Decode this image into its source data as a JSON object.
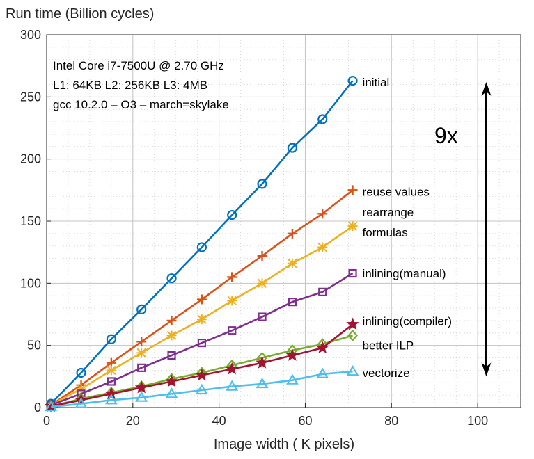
{
  "chart_data": {
    "type": "line",
    "title": "",
    "ylabel": "Run time (Billion cycles)",
    "xlabel": "Image width ( K pixels)",
    "xlim": [
      0,
      110
    ],
    "ylim": [
      0,
      300
    ],
    "xticks": [
      0,
      20,
      40,
      60,
      80,
      100
    ],
    "yticks": [
      0,
      50,
      100,
      150,
      200,
      250,
      300
    ],
    "grid": true,
    "x": [
      1,
      8,
      15,
      22,
      29,
      36,
      43,
      50,
      57,
      64,
      71
    ],
    "series": [
      {
        "name": "initial",
        "color": "#0072BD",
        "marker": "circle",
        "values": [
          3,
          28,
          55,
          79,
          104,
          129,
          155,
          180,
          209,
          232,
          263
        ]
      },
      {
        "name": "reuse values",
        "color": "#D95319",
        "marker": "plus",
        "values": [
          2,
          18,
          36,
          53,
          70,
          87,
          105,
          122,
          140,
          156,
          175
        ]
      },
      {
        "name": "rearrange formulas",
        "color": "#EDB120",
        "marker": "asterisk",
        "values": [
          2,
          15,
          30,
          44,
          58,
          71,
          86,
          100,
          116,
          129,
          146
        ]
      },
      {
        "name": "inlining(manual)",
        "color": "#7E2F8E",
        "marker": "square",
        "values": [
          2,
          11,
          21,
          32,
          42,
          52,
          62,
          73,
          85,
          93,
          108
        ]
      },
      {
        "name": "better ILP",
        "color": "#77AC30",
        "marker": "diamond",
        "values": [
          1,
          7,
          12,
          17,
          23,
          28,
          34,
          40,
          46,
          51,
          58
        ]
      },
      {
        "name": "inlining(compiler)",
        "color": "#A2142F",
        "marker": "star",
        "values": [
          1,
          6,
          11,
          16,
          21,
          26,
          31,
          36,
          42,
          48,
          67
        ]
      },
      {
        "name": "vectorize",
        "color": "#4DBEEE",
        "marker": "triangle",
        "values": [
          0.5,
          3,
          6,
          8,
          11,
          14,
          17,
          19,
          22,
          27,
          29
        ]
      }
    ],
    "series_labels": [
      {
        "lines": [
          "initial"
        ]
      },
      {
        "lines": [
          "reuse values"
        ]
      },
      {
        "lines": [
          "rearrange",
          "formulas"
        ]
      },
      {
        "lines": [
          "inlining(manual)"
        ]
      },
      {
        "lines": [
          "better ILP"
        ]
      },
      {
        "lines": [
          "inlining(compiler)"
        ]
      },
      {
        "lines": [
          "vectorize"
        ]
      }
    ],
    "annotations": {
      "info_lines": [
        "Intel Core i7-7500U @ 2.70 GHz",
        "L1: 64KB  L2: 256KB L3: 4MB",
        "gcc 10.2.0  – O3  – march=skylake"
      ],
      "speedup": "9x",
      "arrow_from_y": 262,
      "arrow_to_y": 25,
      "arrow_x": 102
    }
  }
}
